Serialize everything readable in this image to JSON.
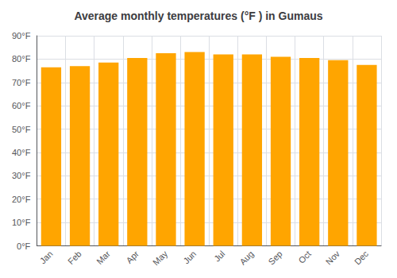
{
  "chart_data": {
    "type": "bar",
    "title": "Average monthly temperatures (°F ) in Gumaus",
    "categories": [
      "Jan",
      "Feb",
      "Mar",
      "Apr",
      "May",
      "Jun",
      "Jul",
      "Aug",
      "Sep",
      "Oct",
      "Nov",
      "Dec"
    ],
    "values": [
      76.5,
      77.0,
      78.5,
      80.5,
      82.5,
      83.0,
      82.0,
      82.0,
      81.0,
      80.5,
      79.5,
      77.5
    ],
    "color": "#FFA500",
    "ylim": [
      0,
      90
    ],
    "yticks": [
      {
        "value": 0,
        "label": "0°F"
      },
      {
        "value": 10,
        "label": "10°F"
      },
      {
        "value": 20,
        "label": "20°F"
      },
      {
        "value": 30,
        "label": "30°F"
      },
      {
        "value": 40,
        "label": "40°F"
      },
      {
        "value": 50,
        "label": "50°F"
      },
      {
        "value": 60,
        "label": "60°F"
      },
      {
        "value": 70,
        "label": "70°F"
      },
      {
        "value": 80,
        "label": "80°F"
      },
      {
        "value": 90,
        "label": "90°F"
      }
    ],
    "grid": true
  }
}
